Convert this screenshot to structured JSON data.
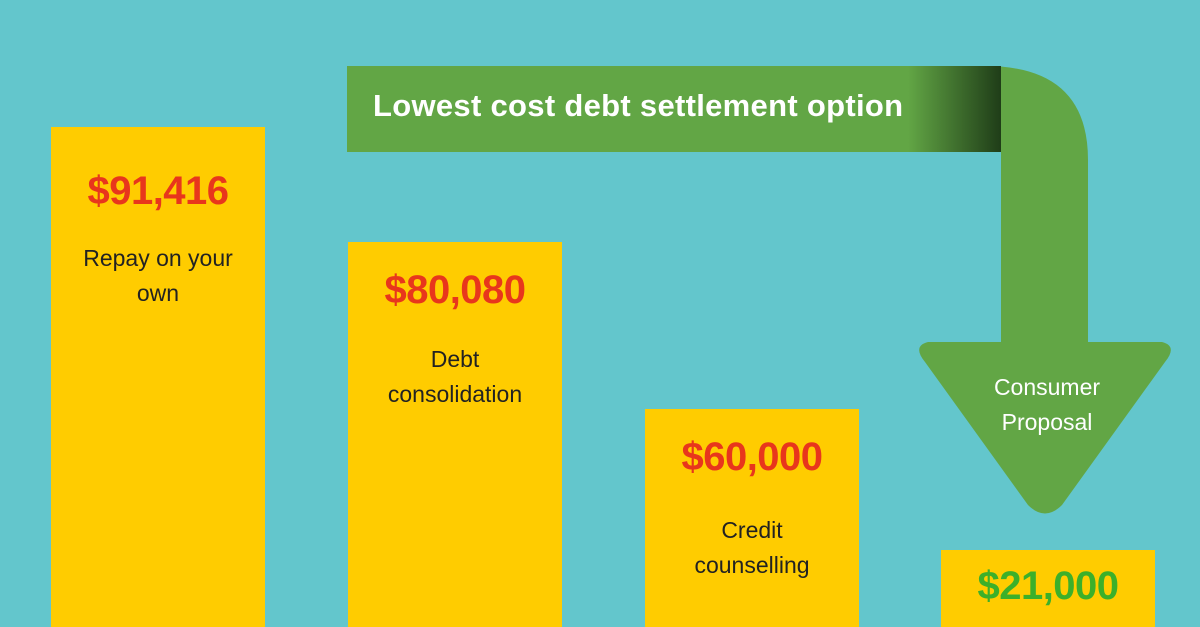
{
  "banner": {
    "title": "Lowest cost debt settlement option"
  },
  "options": [
    {
      "amount": "$91,416",
      "label": "Repay on your own"
    },
    {
      "amount": "$80,080",
      "label": "Debt consolidation"
    },
    {
      "amount": "$60,000",
      "label": "Credit counselling"
    },
    {
      "amount": "$21,000",
      "label": "Consumer Proposal"
    }
  ]
}
